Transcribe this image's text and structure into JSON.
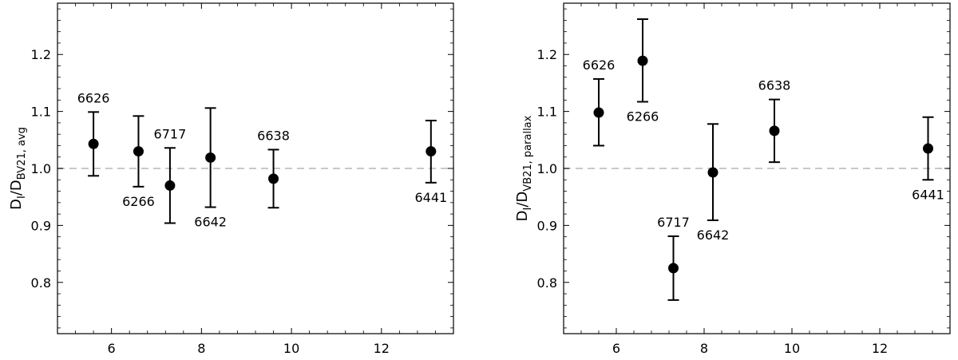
{
  "chart_data": [
    {
      "type": "scatter",
      "title": "",
      "xlabel": "",
      "ylabel": {
        "main": "D",
        "sub1": "I",
        "mid": "/D",
        "sub2": "BV21, avg"
      },
      "xlim": [
        4.8,
        13.6
      ],
      "ylim": [
        0.71,
        1.29
      ],
      "xticks": [
        6,
        8,
        10,
        12
      ],
      "yticks": [
        0.8,
        0.9,
        1.0,
        1.1,
        1.2
      ],
      "xtick_labels": [
        "6",
        "8",
        "10",
        "12"
      ],
      "ytick_labels": [
        "0.8",
        "0.9",
        "1.0",
        "1.1",
        "1.2"
      ],
      "reference_line": {
        "y": 1.0,
        "style": "dashed",
        "color": "#c8c8c8"
      },
      "grid": false,
      "legend": "none",
      "points": [
        {
          "label": "6626",
          "x": 5.6,
          "y": 1.043,
          "err_low": 0.987,
          "err_high": 1.099,
          "label_position": "above"
        },
        {
          "label": "6266",
          "x": 6.6,
          "y": 1.03,
          "err_low": 0.968,
          "err_high": 1.092,
          "label_position": "below"
        },
        {
          "label": "6717",
          "x": 7.3,
          "y": 0.97,
          "err_low": 0.904,
          "err_high": 1.036,
          "label_position": "above"
        },
        {
          "label": "6642",
          "x": 8.2,
          "y": 1.019,
          "err_low": 0.932,
          "err_high": 1.106,
          "label_position": "below"
        },
        {
          "label": "6638",
          "x": 9.6,
          "y": 0.982,
          "err_low": 0.931,
          "err_high": 1.033,
          "label_position": "above"
        },
        {
          "label": "6441",
          "x": 13.1,
          "y": 1.03,
          "err_low": 0.975,
          "err_high": 1.084,
          "label_position": "below"
        }
      ]
    },
    {
      "type": "scatter",
      "title": "",
      "xlabel": "",
      "ylabel": {
        "main": "D",
        "sub1": "I",
        "mid": "/D",
        "sub2": "VB21, parallax"
      },
      "xlim": [
        4.8,
        13.6
      ],
      "ylim": [
        0.71,
        1.29
      ],
      "xticks": [
        6,
        8,
        10,
        12
      ],
      "yticks": [
        0.8,
        0.9,
        1.0,
        1.1,
        1.2
      ],
      "xtick_labels": [
        "6",
        "8",
        "10",
        "12"
      ],
      "ytick_labels": [
        "0.8",
        "0.9",
        "1.0",
        "1.1",
        "1.2"
      ],
      "reference_line": {
        "y": 1.0,
        "style": "dashed",
        "color": "#c8c8c8"
      },
      "grid": false,
      "legend": "none",
      "points": [
        {
          "label": "6626",
          "x": 5.6,
          "y": 1.098,
          "err_low": 1.04,
          "err_high": 1.157,
          "label_position": "above"
        },
        {
          "label": "6266",
          "x": 6.6,
          "y": 1.189,
          "err_low": 1.117,
          "err_high": 1.262,
          "label_position": "below"
        },
        {
          "label": "6717",
          "x": 7.3,
          "y": 0.825,
          "err_low": 0.769,
          "err_high": 0.881,
          "label_position": "above"
        },
        {
          "label": "6642",
          "x": 8.2,
          "y": 0.993,
          "err_low": 0.909,
          "err_high": 1.078,
          "label_position": "below"
        },
        {
          "label": "6638",
          "x": 9.6,
          "y": 1.066,
          "err_low": 1.011,
          "err_high": 1.121,
          "label_position": "above"
        },
        {
          "label": "6441",
          "x": 13.1,
          "y": 1.035,
          "err_low": 0.98,
          "err_high": 1.09,
          "label_position": "below"
        }
      ]
    }
  ]
}
